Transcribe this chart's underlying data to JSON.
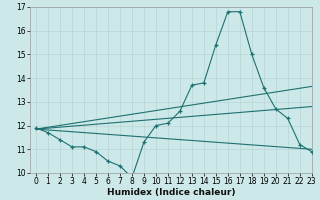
{
  "title": "",
  "xlabel": "Humidex (Indice chaleur)",
  "bg_color": "#cde8e8",
  "grid_color": "#b8d4d4",
  "line_color": "#1e7070",
  "x_values": [
    0,
    1,
    2,
    3,
    4,
    5,
    6,
    7,
    8,
    9,
    10,
    11,
    12,
    13,
    14,
    15,
    16,
    17,
    18,
    19,
    20,
    21,
    22,
    23
  ],
  "jagged_x": [
    0,
    1,
    2,
    3,
    4,
    5,
    6,
    7,
    8,
    9,
    10,
    11,
    12,
    13,
    14,
    15,
    16,
    17,
    18,
    19,
    20,
    21,
    22,
    23
  ],
  "jagged_y": [
    11.9,
    11.7,
    11.4,
    11.1,
    11.1,
    10.9,
    10.5,
    10.3,
    9.8,
    11.3,
    12.0,
    12.1,
    12.6,
    13.7,
    13.8,
    15.4,
    16.8,
    16.8,
    15.0,
    13.6,
    12.7,
    12.3,
    11.2,
    10.9
  ],
  "trend1_x": [
    0,
    23
  ],
  "trend1_y": [
    11.85,
    11.0
  ],
  "trend2_x": [
    0,
    23
  ],
  "trend2_y": [
    11.85,
    12.8
  ],
  "trend3_x": [
    0,
    23
  ],
  "trend3_y": [
    11.85,
    13.65
  ],
  "ylim": [
    10,
    17
  ],
  "xlim": [
    -0.5,
    23
  ],
  "yticks": [
    10,
    11,
    12,
    13,
    14,
    15,
    16,
    17
  ],
  "xticks": [
    0,
    1,
    2,
    3,
    4,
    5,
    6,
    7,
    8,
    9,
    10,
    11,
    12,
    13,
    14,
    15,
    16,
    17,
    18,
    19,
    20,
    21,
    22,
    23
  ],
  "tick_fontsize": 5.5,
  "xlabel_fontsize": 6.5
}
